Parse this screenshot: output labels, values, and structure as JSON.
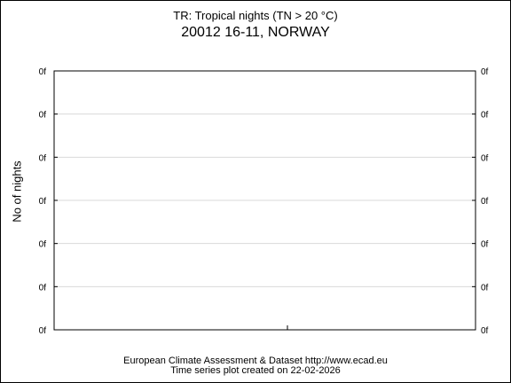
{
  "chart_data": {
    "type": "line",
    "title": "TR: Tropical nights (TN > 20 °C)",
    "subtitle": "20012 16-11, NORWAY",
    "xlabel": "",
    "ylabel": "No of nights",
    "y_tick_labels": [
      "0f",
      "0f",
      "0f",
      "0f",
      "0f",
      "0f",
      "0f"
    ],
    "x_tick_labels": [],
    "series": [],
    "grid": true,
    "colors": {
      "grid": "#d9d9d9",
      "axis": "#000000"
    }
  },
  "footer": {
    "line1": "European Climate Assessment & Dataset  http://www.ecad.eu",
    "line2": "Time series plot created on 22-02-2026"
  }
}
